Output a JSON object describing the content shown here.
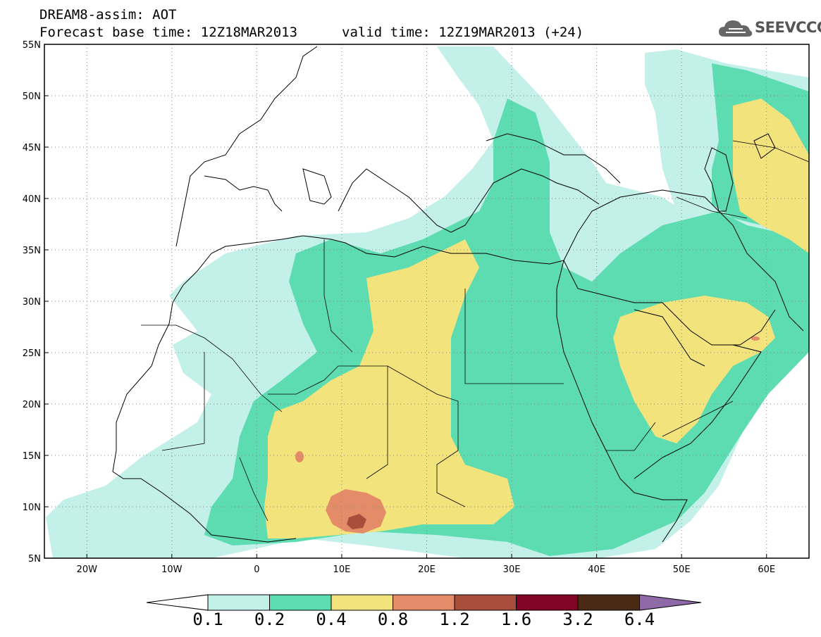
{
  "header": {
    "title_line1": "DREAM8-assim: AOT",
    "base_time": "Forecast base time: 12Z18MAR2013",
    "valid_time": "valid time: 12Z19MAR2013 (+24)"
  },
  "logo": {
    "text": "SEEVCCC",
    "icon": "cloud-icon"
  },
  "map": {
    "lat_labels": [
      "55N",
      "50N",
      "45N",
      "40N",
      "35N",
      "30N",
      "25N",
      "20N",
      "15N",
      "10N",
      "5N"
    ],
    "lon_labels": [
      "20W",
      "10W",
      "0",
      "10E",
      "20E",
      "30E",
      "40E",
      "50E",
      "60E"
    ],
    "lon_range": [
      -25,
      65
    ],
    "lat_range": [
      5,
      55
    ],
    "grid": "dotted"
  },
  "colorbar": {
    "labels": [
      "0.1",
      "0.2",
      "0.4",
      "0.8",
      "1.2",
      "1.6",
      "3.2",
      "6.4"
    ],
    "colors": [
      "#ffffff",
      "#c4f0ea",
      "#5ddcb2",
      "#f2e37c",
      "#e48b68",
      "#a94d3d",
      "#820424",
      "#4a2a14",
      "#8e69a8"
    ]
  }
}
